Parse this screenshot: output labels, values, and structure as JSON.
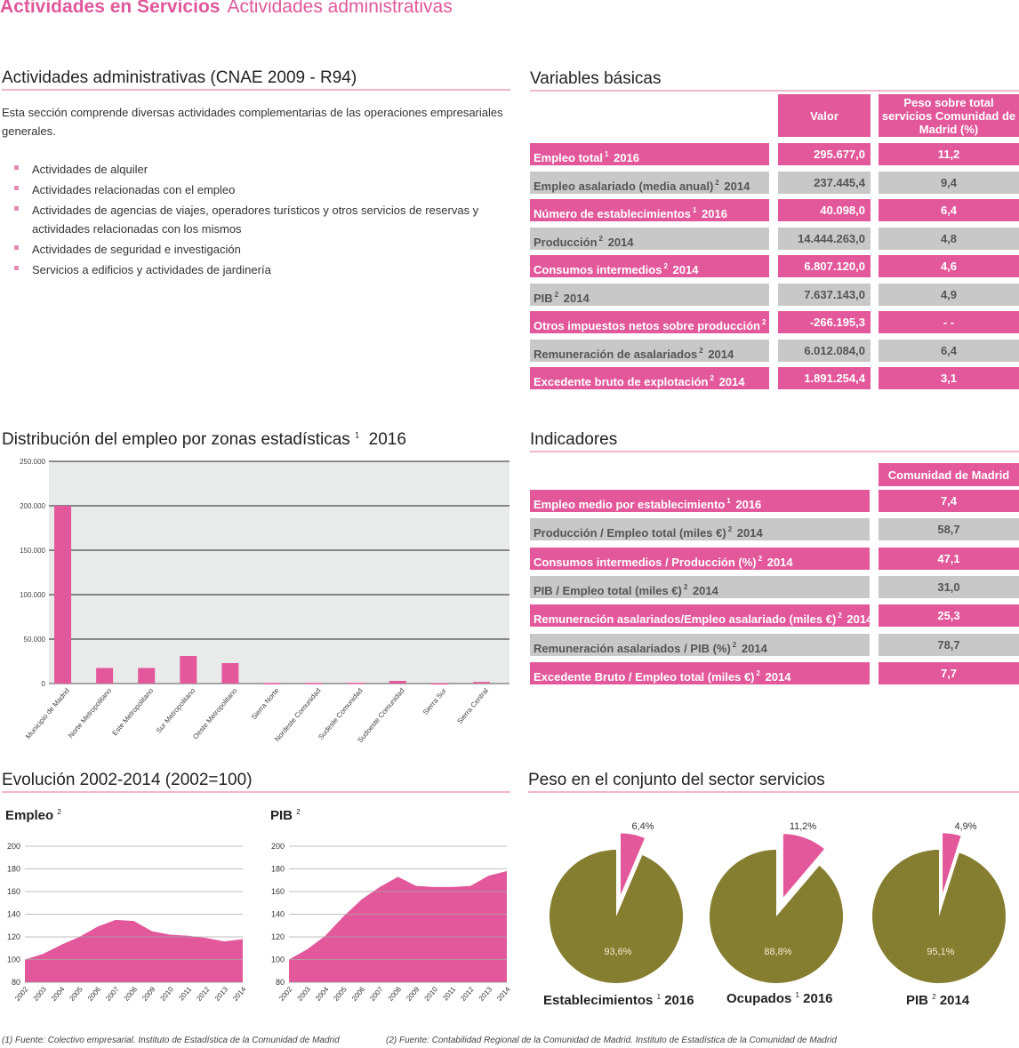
{
  "header": {
    "title_bold": "Actividades en Servicios",
    "title_light": "Actividades administrativas"
  },
  "intro": {
    "title": "Actividades administrativas (CNAE 2009 - R94)",
    "text": "Esta sección comprende diversas actividades complementarias de las operaciones empresariales generales.",
    "items": [
      "Actividades de alquiler",
      "Actividades relacionadas con el empleo",
      "Actividades de agencias de viajes, operadores turísticos y otros servicios de reservas y actividades relacionadas con los mismos",
      "Actividades de seguridad e investigación",
      "Servicios a edificios y actividades de jardinería"
    ]
  },
  "variables": {
    "title": "Variables básicas",
    "col_valor": "Valor",
    "col_peso": "Peso sobre total servicios Comunidad de Madrid (%)",
    "rows": [
      {
        "label": "Empleo total",
        "note": "1",
        "year": "2016",
        "valor": "295.677,0",
        "peso": "11,2",
        "style": "pink"
      },
      {
        "label": "Empleo asalariado (media anual)",
        "note": "2",
        "year": "2014",
        "valor": "237.445,4",
        "peso": "9,4",
        "style": "grey"
      },
      {
        "label": "Número de establecimientos",
        "note": "1",
        "year": "2016",
        "valor": "40.098,0",
        "peso": "6,4",
        "style": "pink"
      },
      {
        "label": "Producción",
        "note": "2",
        "year": "2014",
        "valor": "14.444.263,0",
        "peso": "4,8",
        "style": "grey"
      },
      {
        "label": "Consumos intermedios",
        "note": "2",
        "year": "2014",
        "valor": "6.807.120,0",
        "peso": "4,6",
        "style": "pink"
      },
      {
        "label": "PIB",
        "note": "2",
        "year": "2014",
        "valor": "7.637.143,0",
        "peso": "4,9",
        "style": "grey"
      },
      {
        "label": "Otros impuestos netos sobre producción",
        "note": "2",
        "year": "2014",
        "valor": "-266.195,3",
        "peso": "- -",
        "style": "pink"
      },
      {
        "label": "Remuneración de asalariados",
        "note": "2",
        "year": "2014",
        "valor": "6.012.084,0",
        "peso": "6,4",
        "style": "grey"
      },
      {
        "label": "Excedente bruto de explotación",
        "note": "2",
        "year": "2014",
        "valor": "1.891.254,4",
        "peso": "3,1",
        "style": "pink"
      }
    ]
  },
  "indicadores": {
    "title": "Indicadores",
    "col": "Comunidad de Madrid",
    "rows": [
      {
        "label": "Empleo medio por establecimiento",
        "note": "1",
        "year": "2016",
        "value": "7,4",
        "style": "pink"
      },
      {
        "label": "Producción / Empleo total (miles €)",
        "note": "2",
        "year": "2014",
        "value": "58,7",
        "style": "grey"
      },
      {
        "label": "Consumos intermedios / Producción (%)",
        "note": "2",
        "year": "2014",
        "value": "47,1",
        "style": "pink"
      },
      {
        "label": "PIB / Empleo total (miles €)",
        "note": "2",
        "year": "2014",
        "value": "31,0",
        "style": "grey"
      },
      {
        "label": "Remuneración asalariados/Empleo asalariado (miles €)",
        "note": "2",
        "year": "2014",
        "value": "25,3",
        "style": "pink"
      },
      {
        "label": "Remuneración asalariados / PIB (%)",
        "note": "2",
        "year": "2014",
        "value": "78,7",
        "style": "grey"
      },
      {
        "label": "Excedente Bruto / Empleo total (miles €)",
        "note": "2",
        "year": "2014",
        "value": "7,7",
        "style": "pink"
      }
    ]
  },
  "colors": {
    "pink": "#e2589a",
    "olive": "#857d30",
    "grey": "#c8c8c8",
    "plot_bg": "#e9eaea"
  },
  "evolucion": {
    "title": "Evolución 2002-2014 (2002=100)"
  },
  "peso": {
    "title": "Peso en el conjunto del sector servicios"
  },
  "footnotes": {
    "f1": "(1) Fuente: Colectivo empresarial. Instituto de Estadística de la Comunidad de Madrid",
    "f2": "(2) Fuente: Contabilidad Regional de la Comunidad de Madrid. Instituto de Estadística de la Comunidad de Madrid"
  },
  "chart_data": [
    {
      "type": "bar",
      "title": "Distribución del empleo por zonas estadísticas",
      "title_note": "1",
      "title_year": "2016",
      "categories": [
        "Municipio de Madrid",
        "Norte Metropolitano",
        "Este Metropolitano",
        "Sur Metropolitano",
        "Oeste Metropolitano",
        "Sierra Norte",
        "Nordeste Comunidad",
        "Sudeste Comunidad",
        "Sudoeste Comunidad",
        "Sierra Sur",
        "Sierra Central"
      ],
      "values": [
        200000,
        17500,
        17500,
        31000,
        23000,
        600,
        700,
        800,
        3000,
        400,
        1800
      ],
      "ylim": [
        0,
        250000
      ],
      "yticks": [
        "0",
        "50.000",
        "100.000",
        "150.000",
        "200.000",
        "250.000"
      ],
      "grid": true
    },
    {
      "type": "area",
      "title": "Empleo",
      "title_note": "2",
      "x": [
        "2002",
        "2003",
        "2004",
        "2005",
        "2006",
        "2007",
        "2008",
        "2009",
        "2010",
        "2011",
        "2012",
        "2013",
        "2014"
      ],
      "values": [
        100,
        105,
        113,
        120,
        129,
        135,
        134,
        125,
        122,
        121,
        119,
        116,
        118
      ],
      "ylim": [
        80,
        200
      ],
      "yticks": [
        "80",
        "100",
        "120",
        "140",
        "160",
        "180",
        "200"
      ]
    },
    {
      "type": "area",
      "title": "PIB",
      "title_note": "2",
      "x": [
        "2002",
        "2003",
        "2004",
        "2005",
        "2006",
        "2007",
        "2008",
        "2009",
        "2010",
        "2011",
        "2012",
        "2013",
        "2014"
      ],
      "values": [
        100,
        109,
        121,
        138,
        153,
        164,
        173,
        165,
        164,
        164,
        165,
        174,
        178
      ],
      "ylim": [
        80,
        200
      ],
      "yticks": [
        "80",
        "100",
        "120",
        "140",
        "160",
        "180",
        "200"
      ]
    },
    {
      "type": "pie",
      "title": "Establecimientos",
      "title_note": "1",
      "title_year": "2016",
      "slices": [
        {
          "label": "6,4%",
          "value": 6.4
        },
        {
          "label": "93,6%",
          "value": 93.6
        }
      ]
    },
    {
      "type": "pie",
      "title": "Ocupados",
      "title_note": "1",
      "title_year": "2016",
      "slices": [
        {
          "label": "11,2%",
          "value": 11.2
        },
        {
          "label": "88,8%",
          "value": 88.8
        }
      ]
    },
    {
      "type": "pie",
      "title": "PIB",
      "title_note": "2",
      "title_year": "2014",
      "slices": [
        {
          "label": "4,9%",
          "value": 4.9
        },
        {
          "label": "95,1%",
          "value": 95.1
        }
      ]
    }
  ]
}
